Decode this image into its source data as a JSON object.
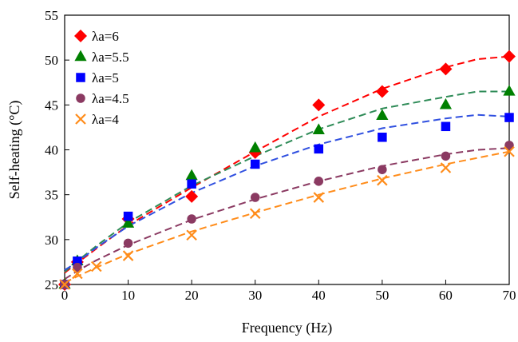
{
  "chart_data": {
    "type": "scatter",
    "xlabel": "Frequency (Hz)",
    "ylabel": "Self-heating (°C)",
    "xlim": [
      0,
      70
    ],
    "ylim": [
      25,
      55
    ],
    "xticks": [
      0,
      10,
      20,
      30,
      40,
      50,
      60,
      70
    ],
    "yticks": [
      25,
      30,
      35,
      40,
      45,
      50,
      55
    ],
    "grid": false,
    "legend_position": "top-left",
    "series": [
      {
        "name": "λa=6",
        "marker": "diamond",
        "color": "#ff0000",
        "x": [
          0,
          2,
          10,
          20,
          30,
          40,
          50,
          60,
          70
        ],
        "y": [
          25.0,
          27.5,
          32.3,
          34.8,
          39.7,
          45.0,
          46.5,
          49.0,
          50.4
        ],
        "fit_x": [
          0,
          2,
          5,
          10,
          20,
          30,
          40,
          50,
          60,
          65,
          70
        ],
        "fit_y": [
          26.3,
          27.4,
          29.0,
          31.6,
          35.8,
          39.8,
          43.7,
          46.8,
          49.2,
          50.1,
          50.4
        ]
      },
      {
        "name": "λa=5.5",
        "marker": "triangle",
        "color": "#008000",
        "x": [
          0,
          2,
          10,
          20,
          30,
          40,
          50,
          60,
          70
        ],
        "y": [
          25.0,
          27.6,
          31.8,
          37.1,
          40.2,
          42.2,
          43.8,
          45.0,
          46.5
        ],
        "fit_x": [
          0,
          2,
          5,
          10,
          20,
          30,
          40,
          50,
          60,
          65,
          70
        ],
        "fit_y": [
          26.4,
          27.6,
          29.3,
          31.9,
          36.0,
          39.3,
          42.3,
          44.6,
          45.9,
          46.5,
          46.5
        ],
        "fit_color": "#2e8b57"
      },
      {
        "name": "λa=5",
        "marker": "square",
        "color": "#0000ff",
        "x": [
          0,
          2,
          10,
          20,
          30,
          40,
          50,
          60,
          70
        ],
        "y": [
          25.0,
          27.6,
          32.6,
          36.2,
          38.4,
          40.1,
          41.4,
          42.6,
          43.6
        ],
        "fit_x": [
          0,
          2,
          5,
          10,
          20,
          30,
          40,
          50,
          60,
          65,
          70
        ],
        "fit_y": [
          26.6,
          27.5,
          29.1,
          31.5,
          35.2,
          38.2,
          40.6,
          42.4,
          43.5,
          43.9,
          43.7
        ],
        "fit_color": "#3050e0"
      },
      {
        "name": "λa=4.5",
        "marker": "circle",
        "color": "#8b3a62",
        "x": [
          0,
          2,
          10,
          20,
          30,
          40,
          50,
          60,
          70
        ],
        "y": [
          25.0,
          26.9,
          29.6,
          32.3,
          34.7,
          36.5,
          37.8,
          39.3,
          40.5
        ],
        "fit_x": [
          0,
          2,
          5,
          10,
          20,
          30,
          40,
          50,
          60,
          65,
          70
        ],
        "fit_y": [
          25.6,
          26.5,
          27.7,
          29.4,
          32.2,
          34.5,
          36.5,
          38.2,
          39.5,
          40.0,
          40.2
        ]
      },
      {
        "name": "λa=4",
        "marker": "x",
        "color": "#ff8c1a",
        "x": [
          0,
          2,
          5,
          10,
          20,
          30,
          40,
          50,
          60,
          70
        ],
        "y": [
          25.0,
          26.2,
          27.0,
          28.2,
          30.5,
          32.9,
          34.7,
          36.6,
          38.0,
          39.8
        ],
        "fit_x": [
          0,
          2,
          5,
          10,
          20,
          30,
          40,
          50,
          60,
          65,
          70
        ],
        "fit_y": [
          25.2,
          25.9,
          26.9,
          28.4,
          30.9,
          33.0,
          35.0,
          36.8,
          38.4,
          39.1,
          39.8
        ]
      }
    ]
  }
}
